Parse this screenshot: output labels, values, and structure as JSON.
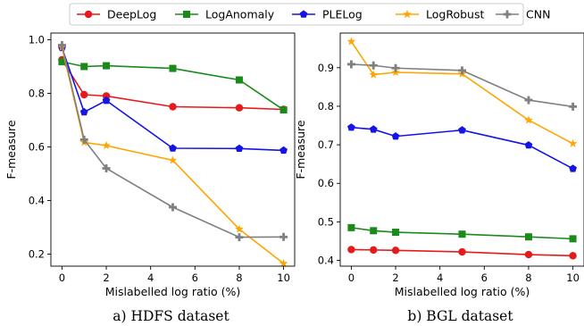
{
  "legend": {
    "placement": "top",
    "entries": [
      "DeepLog",
      "LogAnomaly",
      "PLELog",
      "LogRobust",
      "CNN"
    ]
  },
  "colors": {
    "DeepLog": "#e6191c",
    "LogAnomaly": "#1a8a1a",
    "PLELog": "#1414e6",
    "LogRobust": "#ffa500",
    "CNN": "#808080"
  },
  "markers": {
    "DeepLog": "circle",
    "LogAnomaly": "square",
    "PLELog": "pentagon",
    "LogRobust": "star",
    "CNN": "plus"
  },
  "chart_data": [
    {
      "type": "line",
      "caption": "a) HDFS dataset",
      "xlabel": "Mislabelled log ratio (%)",
      "ylabel": "F-measure",
      "x": [
        0,
        1,
        2,
        5,
        8,
        10
      ],
      "xlim": [
        -0.5,
        10.5
      ],
      "ylim": [
        0.155,
        1.025
      ],
      "xticks": [
        0,
        2,
        4,
        6,
        8,
        10
      ],
      "yticks": [
        0.2,
        0.4,
        0.6,
        0.8,
        1.0
      ],
      "ytick_labels": [
        "0.2",
        "0.4",
        "0.6",
        "0.8",
        "1.0"
      ],
      "grid": false,
      "series": [
        {
          "name": "DeepLog",
          "values": [
            0.925,
            0.795,
            0.79,
            0.75,
            0.746,
            0.74
          ]
        },
        {
          "name": "LogAnomaly",
          "values": [
            0.918,
            0.9,
            0.903,
            0.893,
            0.85,
            0.738
          ]
        },
        {
          "name": "PLELog",
          "values": [
            0.97,
            0.73,
            0.773,
            0.595,
            0.594,
            0.587
          ]
        },
        {
          "name": "LogRobust",
          "values": [
            0.972,
            0.617,
            0.605,
            0.55,
            0.293,
            0.165
          ]
        },
        {
          "name": "CNN",
          "values": [
            0.98,
            0.627,
            0.52,
            0.375,
            0.263,
            0.264
          ]
        }
      ]
    },
    {
      "type": "line",
      "caption": "b) BGL dataset",
      "xlabel": "Mislabelled log ratio (%)",
      "ylabel": "F-measure",
      "x": [
        0,
        1,
        2,
        5,
        8,
        10
      ],
      "xlim": [
        -0.5,
        10.5
      ],
      "ylim": [
        0.385,
        0.99
      ],
      "xticks": [
        0,
        2,
        4,
        6,
        8,
        10
      ],
      "yticks": [
        0.4,
        0.5,
        0.6,
        0.7,
        0.8,
        0.9
      ],
      "ytick_labels": [
        "0.4",
        "0.5",
        "0.6",
        "0.7",
        "0.8",
        "0.9"
      ],
      "grid": false,
      "series": [
        {
          "name": "DeepLog",
          "values": [
            0.428,
            0.427,
            0.426,
            0.422,
            0.415,
            0.412
          ]
        },
        {
          "name": "LogAnomaly",
          "values": [
            0.485,
            0.477,
            0.473,
            0.468,
            0.461,
            0.456
          ]
        },
        {
          "name": "PLELog",
          "values": [
            0.745,
            0.74,
            0.722,
            0.738,
            0.699,
            0.638
          ]
        },
        {
          "name": "LogRobust",
          "values": [
            0.968,
            0.882,
            0.888,
            0.884,
            0.764,
            0.703
          ]
        },
        {
          "name": "CNN",
          "values": [
            0.909,
            0.906,
            0.899,
            0.893,
            0.816,
            0.799
          ]
        }
      ]
    }
  ]
}
